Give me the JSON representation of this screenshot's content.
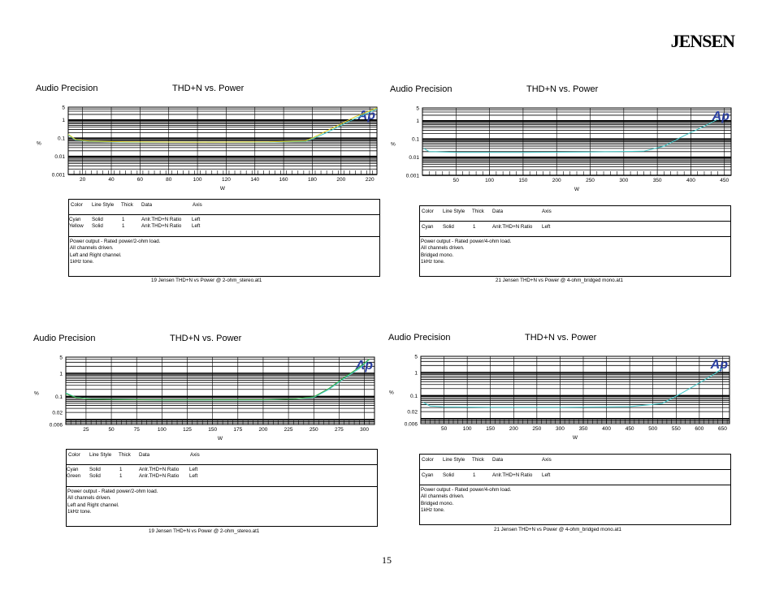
{
  "brand": "JENSEN",
  "page_number": "15",
  "panels": [
    {
      "header_left": "Audio Precision",
      "header_title": "THD+N vs. Power",
      "logo": "Ap",
      "legend_headers": [
        "Color",
        "Line Style",
        "Thick",
        "Data",
        "Axis"
      ],
      "legend_rows": [
        [
          "Cyan",
          "Solid",
          "1",
          "Anlr.THD+N Ratio",
          "Left"
        ],
        [
          "Yellow",
          "Solid",
          "1",
          "Anlr.THD+N Ratio",
          "Left"
        ]
      ],
      "notes": [
        "Power output - Rated power/2-ohm load.",
        "All channels driven.",
        "Left and Right channel.",
        "1kHz tone."
      ],
      "footer": "19 Jensen THD+N vs Power @ 2-ohm_stereo.at1"
    },
    {
      "header_left": "Audio Precision",
      "header_title": "THD+N vs. Power",
      "logo": "Ap",
      "legend_headers": [
        "Color",
        "Line Style",
        "Thick",
        "Data",
        "Axis"
      ],
      "legend_rows": [
        [
          "Cyan",
          "Solid",
          "1",
          "Anlr.THD+N Ratio",
          "Left"
        ]
      ],
      "notes": [
        "Power output - Rated power/4-ohm load.",
        "All channels driven.",
        "Bridged mono.",
        "1kHz tone."
      ],
      "footer": "21 Jensen THD+N vs Power @ 4-ohm_bridged mono.at1"
    },
    {
      "header_left": "Audio Precision",
      "header_title": "THD+N vs. Power",
      "logo": "Ap",
      "legend_headers": [
        "Color",
        "Line Style",
        "Thick",
        "Data",
        "Axis"
      ],
      "legend_rows": [
        [
          "Cyan",
          "Solid",
          "1",
          "Anlr.THD+N Ratio",
          "Left"
        ],
        [
          "Green",
          "Solid",
          "1",
          "Anlr.THD+N Ratio",
          "Left"
        ]
      ],
      "notes": [
        "Power output - Rated power/2-ohm load.",
        "All channels driven.",
        "Left and Right channel.",
        "1kHz tone."
      ],
      "footer": "19 Jensen THD+N vs Power @ 2-ohm_stereo.at1"
    },
    {
      "header_left": "Audio Precision",
      "header_title": "THD+N vs. Power",
      "logo": "Ap",
      "legend_headers": [
        "Color",
        "Line Style",
        "Thick",
        "Data",
        "Axis"
      ],
      "legend_rows": [
        [
          "Cyan",
          "Solid",
          "1",
          "Anlr.THD+N Ratio",
          "Left"
        ]
      ],
      "notes": [
        "Power output - Rated power/4-ohm load.",
        "All channels driven.",
        "Bridged mono.",
        "1kHz tone."
      ],
      "footer": "21 Jensen THD+N vs Power @ 4-ohm_bridged mono.at1"
    }
  ],
  "chart_data": [
    {
      "type": "line",
      "title": "THD+N vs. Power",
      "xlabel": "W",
      "ylabel": "%",
      "xlim": [
        10,
        225
      ],
      "ylim": [
        0.001,
        5
      ],
      "yscale": "log",
      "xticks": [
        20,
        40,
        60,
        80,
        100,
        120,
        140,
        160,
        180,
        200,
        220
      ],
      "yticks": [
        "0.001",
        "0.01",
        "0.1",
        "1",
        "5"
      ],
      "grid": true,
      "series": [
        {
          "name": "Cyan",
          "color": "#3fc9c9",
          "x": [
            10,
            15,
            25,
            50,
            100,
            150,
            175,
            180,
            190,
            200,
            210,
            225
          ],
          "y": [
            0.15,
            0.08,
            0.065,
            0.06,
            0.06,
            0.06,
            0.065,
            0.09,
            0.2,
            0.5,
            1.2,
            4
          ]
        },
        {
          "name": "Yellow",
          "color": "#e3cf1f",
          "x": [
            10,
            15,
            25,
            50,
            100,
            150,
            175,
            180,
            190,
            200,
            210,
            225
          ],
          "y": [
            0.16,
            0.085,
            0.068,
            0.062,
            0.06,
            0.062,
            0.07,
            0.1,
            0.25,
            0.6,
            1.5,
            4.5
          ]
        }
      ]
    },
    {
      "type": "line",
      "title": "THD+N vs. Power",
      "xlabel": "W",
      "ylabel": "%",
      "xlim": [
        0,
        460
      ],
      "ylim": [
        0.001,
        5
      ],
      "yscale": "log",
      "xticks": [
        50,
        100,
        150,
        200,
        250,
        300,
        350,
        400,
        450
      ],
      "yticks": [
        "0.001",
        "0.01",
        "0.1",
        "1",
        "5"
      ],
      "grid": true,
      "series": [
        {
          "name": "Cyan",
          "color": "#3fc9c9",
          "x": [
            2,
            10,
            50,
            150,
            250,
            330,
            360,
            390,
            420,
            440
          ],
          "y": [
            0.03,
            0.02,
            0.018,
            0.018,
            0.019,
            0.021,
            0.04,
            0.15,
            0.5,
            1.2
          ]
        }
      ]
    },
    {
      "type": "line",
      "title": "THD+N vs. Power",
      "xlabel": "W",
      "ylabel": "%",
      "xlim": [
        5,
        310
      ],
      "ylim": [
        0.006,
        5
      ],
      "yscale": "log",
      "xticks": [
        25,
        50,
        75,
        100,
        125,
        150,
        175,
        200,
        225,
        250,
        275,
        300
      ],
      "yticks": [
        "0.006",
        "0.02",
        "0.1",
        "1",
        "5"
      ],
      "grid": true,
      "series": [
        {
          "name": "Cyan",
          "color": "#3fc9c9",
          "x": [
            5,
            15,
            30,
            100,
            200,
            230,
            250,
            265,
            280,
            295,
            305
          ],
          "y": [
            0.14,
            0.09,
            0.075,
            0.07,
            0.07,
            0.075,
            0.09,
            0.2,
            0.6,
            1.6,
            4
          ]
        },
        {
          "name": "Green",
          "color": "#3aa63a",
          "x": [
            5,
            15,
            30,
            100,
            200,
            230,
            250,
            265,
            280,
            295,
            305
          ],
          "y": [
            0.13,
            0.088,
            0.074,
            0.07,
            0.071,
            0.076,
            0.095,
            0.22,
            0.65,
            1.8,
            4.2
          ]
        }
      ]
    },
    {
      "type": "line",
      "title": "THD+N vs. Power",
      "xlabel": "W",
      "ylabel": "%",
      "xlim": [
        0,
        665
      ],
      "ylim": [
        0.006,
        5
      ],
      "yscale": "log",
      "xticks": [
        50,
        100,
        150,
        200,
        250,
        300,
        350,
        400,
        450,
        500,
        550,
        600,
        650
      ],
      "yticks": [
        "0.006",
        "0.02",
        "0.1",
        "1",
        "5"
      ],
      "grid": true,
      "series": [
        {
          "name": "Cyan",
          "color": "#3fc9c9",
          "x": [
            5,
            20,
            50,
            150,
            300,
            450,
            520,
            560,
            600,
            630,
            650
          ],
          "y": [
            0.05,
            0.035,
            0.032,
            0.031,
            0.031,
            0.033,
            0.045,
            0.12,
            0.35,
            0.8,
            1.5
          ]
        }
      ]
    }
  ]
}
